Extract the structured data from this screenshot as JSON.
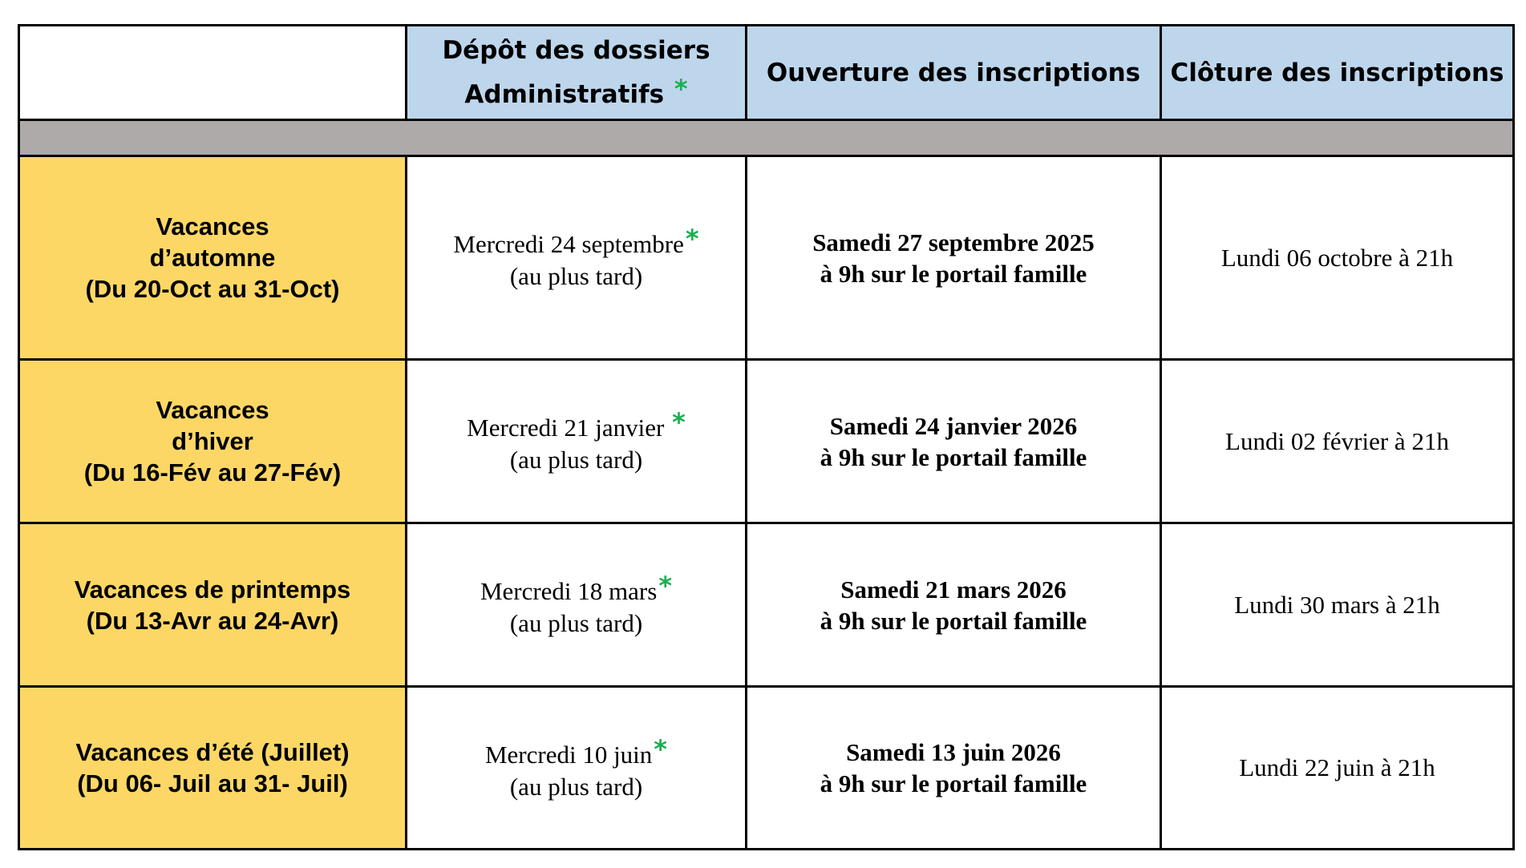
{
  "header": {
    "col1_line1": "Dépôt des dossiers",
    "col1_line2": "Administratifs",
    "col1_star": "*",
    "col2": "Ouverture des inscriptions",
    "col3": "Clôture des inscriptions"
  },
  "rows": [
    {
      "period_line1": "Vacances",
      "period_line2": "d’automne",
      "period_line3": "(Du 20-Oct au 31-Oct)",
      "deposit_line1": "Mercredi 24 septembre",
      "deposit_star": "*",
      "deposit_line2": "(au plus tard)",
      "opening_line1": "Samedi 27 septembre 2025",
      "opening_line2": "à 9h sur le portail famille",
      "closing": "Lundi 06 octobre à 21h"
    },
    {
      "period_line1": "Vacances",
      "period_line2": "d’hiver",
      "period_line3": "(Du 16-Fév au 27-Fév)",
      "deposit_line1": "Mercredi 21 janvier",
      "deposit_star": "*",
      "deposit_line2": "(au plus tard)",
      "opening_line1": "Samedi 24 janvier 2026",
      "opening_line2": "à 9h sur le portail famille",
      "closing": "Lundi 02 février à 21h"
    },
    {
      "period_line1": "Vacances de printemps",
      "period_line2": "(Du 13-Avr au 24-Avr)",
      "deposit_line1": "Mercredi 18 mars",
      "deposit_star": "*",
      "deposit_line2": "(au plus tard)",
      "opening_line1": "Samedi 21 mars 2026",
      "opening_line2": "à 9h sur le portail famille",
      "closing": "Lundi 30 mars à 21h"
    },
    {
      "period_line1": "Vacances d’été (Juillet)",
      "period_line2": "(Du 06- Juil au 31- Juil)",
      "deposit_line1": "Mercredi 10 juin",
      "deposit_star": "*",
      "deposit_line2": "(au plus tard)",
      "opening_line1": "Samedi 13 juin 2026",
      "opening_line2": "à 9h sur le portail famille",
      "closing": "Lundi 22 juin à 21h"
    }
  ],
  "colors": {
    "header_bg": "#bed6ec",
    "period_bg": "#fdd765",
    "separator_bg": "#aeaaaa",
    "star": "#18b04f"
  }
}
